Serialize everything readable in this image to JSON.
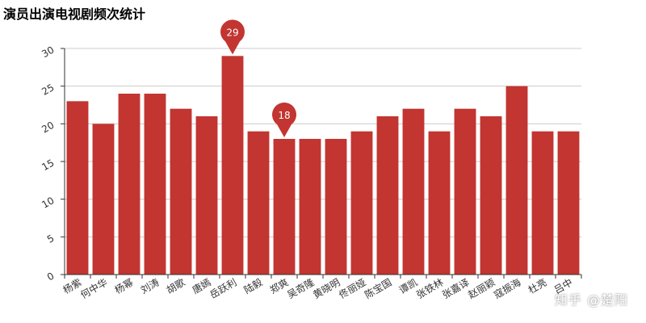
{
  "title": "演员出演电视剧频次统计",
  "watermark": "知乎 @楚阳",
  "colors": {
    "bar": "#c23531",
    "grid": "#cccccc",
    "axis": "#333333"
  },
  "chart_data": {
    "type": "bar",
    "title": "演员出演电视剧频次统计",
    "xlabel": "",
    "ylabel": "",
    "ylim": [
      0,
      30
    ],
    "yticks": [
      0,
      5,
      10,
      15,
      20,
      25,
      30
    ],
    "categories": [
      "杨紫",
      "何中华",
      "杨幂",
      "刘涛",
      "胡歌",
      "唐嫣",
      "岳跃利",
      "陆毅",
      "郑爽",
      "吴奇隆",
      "黄晓明",
      "佟丽娅",
      "陈宝国",
      "谭凯",
      "张铁林",
      "张嘉译",
      "赵丽颖",
      "寇振海",
      "杜亮",
      "吕中"
    ],
    "values": [
      23,
      20,
      24,
      24,
      22,
      21,
      29,
      19,
      18,
      18,
      18,
      19,
      21,
      22,
      19,
      22,
      21,
      25,
      19,
      19
    ],
    "mark_points": [
      {
        "name": "max",
        "category": "岳跃利",
        "value": 29
      },
      {
        "name": "min",
        "category": "郑爽",
        "value": 18
      }
    ]
  }
}
